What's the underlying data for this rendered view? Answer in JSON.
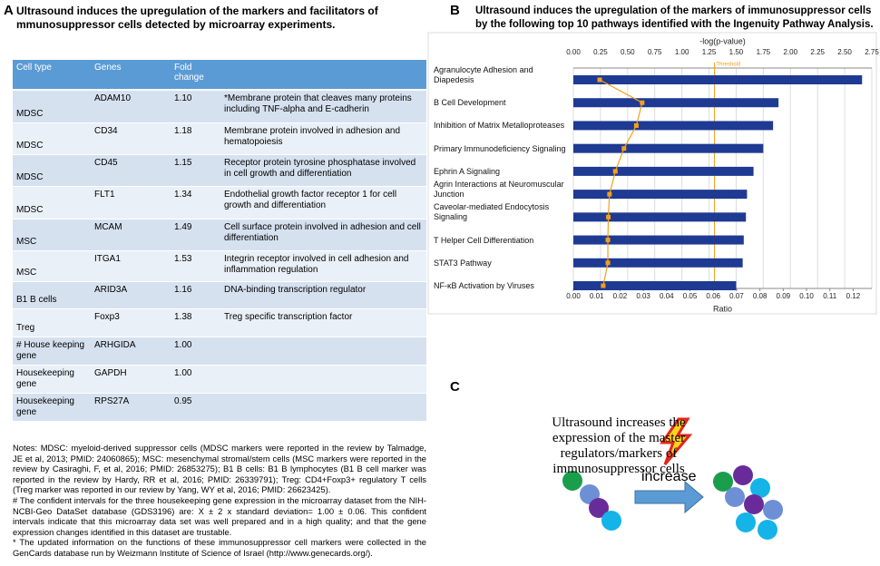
{
  "panel_a": {
    "label": "A",
    "title": "Ultrasound induces the upregulation of the markers and facilitators of mmunosuppressor cells detected by microarray experiments.",
    "table": {
      "header": [
        "Cell type",
        "Genes",
        "Fold change"
      ],
      "rows": [
        [
          "MDSC",
          "ADAM10",
          "1.10",
          "*Membrane protein that cleaves many proteins including TNF-alpha and E-cadherin"
        ],
        [
          "MDSC",
          "CD34",
          "1.18",
          "Membrane protein involved in adhesion and hematopoiesis"
        ],
        [
          "MDSC",
          "CD45",
          "1.15",
          "Receptor protein tyrosine phosphatase involved in cell growth and differentiation"
        ],
        [
          "MDSC",
          "FLT1",
          "1.34",
          "Endothelial growth factor receptor 1 for cell growth and differentiation"
        ],
        [
          "MSC",
          "MCAM",
          "1.49",
          "Cell surface protein involved in adhesion and cell differentiation"
        ],
        [
          "MSC",
          "ITGA1",
          "1.53",
          "Integrin receptor involved in cell adhesion and inflammation regulation"
        ],
        [
          "B1 B cells",
          "ARID3A",
          "1.16",
          "DNA-binding transcription regulator"
        ],
        [
          "Treg",
          "Foxp3",
          "1.38",
          "Treg specific transcription factor"
        ],
        [
          "# House keeping gene",
          "ARHGIDA",
          "1.00"
        ],
        [
          "Housekeeping gene",
          "GAPDH",
          "1.00"
        ],
        [
          "Housekeeping gene",
          "RPS27A",
          "0.95"
        ]
      ]
    },
    "notes": [
      "Notes: MDSC: myeloid-derived suppressor cells (MDSC markers were reported in the review by Talmadge, JE et al, 2013; PMID: 24060865); MSC: mesenchymal stromal/stem cells (MSC markers were reported in the review by Casiraghi, F, et al, 2016; PMID: 26853275); B1 B cells: B1 B lymphocytes (B1 B cell marker was reported in the review by Hardy, RR et al, 2016; PMID: 26339791); Treg: CD4+Foxp3+ regulatory T cells (Treg marker was reported in our review by Yang, WY et al, 2016; PMID: 26623425).",
      "# The confident intervals for the three housekeeping gene expression in the microarray dataset from the NIH-NCBI-Geo DataSet database (GDS3196) are:   X ± 2 x standard deviation= 1.00 ± 0.06. This confident intervals indicate that this microarray data set was well prepared and in a high quality; and that the gene expression changes identified in this dataset are trustable.",
      "* The updated information on the functions of these immunosuppressor cell markers were collected in the GenCards database run by Weizmann Institute of Science of Israel (http://www.genecards.org/)."
    ]
  },
  "chart_data": {
    "type": "bar",
    "orientation": "horizontal",
    "panel_label": "B",
    "title": "Ultrasound induces the upregulation of the markers of immunosuppressor cells by the following top 10 pathways identified with the Ingenuity Pathway Analysis.",
    "categories": [
      "Agranulocyte Adhesion and Diapedesis",
      "B Cell Development",
      "Inhibition of Matrix Metalloproteases",
      "Primary Immunodeficiency Signaling",
      "Ephrin A Signaling",
      "Agrin Interactions at Neuromuscular Junction",
      "Caveolar-mediated Endocytosis Signaling",
      "T Helper Cell Differentiation",
      "STAT3 Pathway",
      "NF-κB Activation by Viruses"
    ],
    "series": [
      {
        "type": "bar",
        "axis": "x2",
        "color": "#1f3a93",
        "values": [
          2.66,
          1.89,
          1.84,
          1.75,
          1.66,
          1.6,
          1.59,
          1.57,
          1.56,
          1.5
        ]
      },
      {
        "type": "line",
        "axis": "x",
        "color": "#f5a01a",
        "values": [
          0.0113,
          0.0295,
          0.027,
          0.0217,
          0.018,
          0.0155,
          0.015,
          0.0148,
          0.0148,
          0.0128
        ]
      }
    ],
    "x_label": "Ratio",
    "x2_label": "-log(p-value)",
    "xlim": [
      0,
      0.128
    ],
    "x2lim": [
      0,
      2.75
    ],
    "xticks": [
      {
        "value": 0,
        "label": "0.00"
      },
      {
        "value": 0.01,
        "label": "0.01"
      },
      {
        "value": 0.02,
        "label": "0.02"
      },
      {
        "value": 0.03,
        "label": "0.03"
      },
      {
        "value": 0.04,
        "label": "0.04"
      },
      {
        "value": 0.05,
        "label": "0.05"
      },
      {
        "value": 0.06,
        "label": "0.06"
      },
      {
        "value": 0.07,
        "label": "0.07"
      },
      {
        "value": 0.08,
        "label": "0.08"
      },
      {
        "value": 0.09,
        "label": "0.09"
      },
      {
        "value": 0.1,
        "label": "0.10"
      },
      {
        "value": 0.11,
        "label": "0.11"
      },
      {
        "value": 0.12,
        "label": "0.12"
      }
    ],
    "x2ticks": [
      {
        "value": 0,
        "label": "0.00"
      },
      {
        "value": 0.25,
        "label": "0.25"
      },
      {
        "value": 0.5,
        "label": "0.50"
      },
      {
        "value": 0.75,
        "label": "0.75"
      },
      {
        "value": 1,
        "label": "1.00"
      },
      {
        "value": 1.25,
        "label": "1.25"
      },
      {
        "value": 1.5,
        "label": "1.50"
      },
      {
        "value": 1.75,
        "label": "1.75"
      },
      {
        "value": 2,
        "label": "2.00"
      },
      {
        "value": 2.25,
        "label": "2.25"
      },
      {
        "value": 2.5,
        "label": "2.50"
      },
      {
        "value": 2.75,
        "label": "2.75"
      }
    ],
    "threshold": {
      "value": 1.3,
      "label": "Threshold",
      "axis": "x2",
      "color": "#f5a01a"
    },
    "grid": true
  },
  "panel_c": {
    "label": "C",
    "text": "Ultrasound increases the expression of the master regulators/markers of immunosuppressor cells",
    "arrow_label": "increase"
  }
}
